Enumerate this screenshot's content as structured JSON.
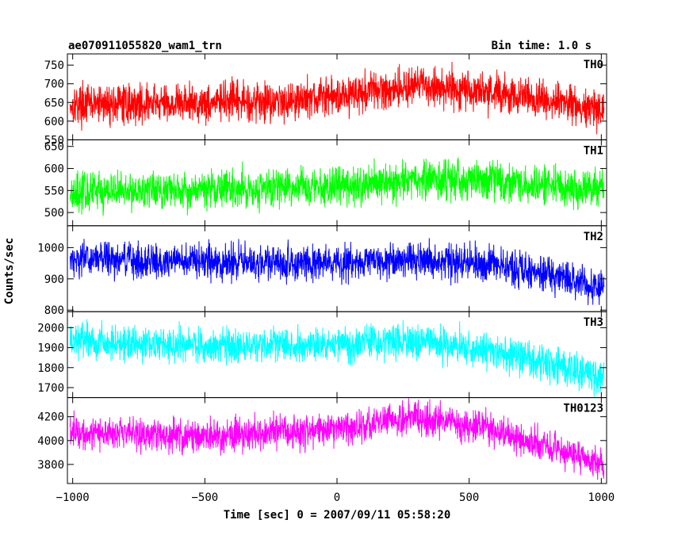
{
  "chart_data": {
    "type": "line",
    "title": "ae070911055820_wam1_trn",
    "subtitle": "Bin time: 1.0 s",
    "xlabel": "Time [sec] 0 = 2007/09/11 05:58:20",
    "ylabel": "Counts/sec",
    "xlim": [
      -1020,
      1020
    ],
    "x_ticks": [
      -1000,
      -500,
      0,
      500,
      1000
    ],
    "x_tick_labels": [
      "−1000",
      "−500",
      "0",
      "500",
      "1000"
    ],
    "grid": false,
    "legend": "none",
    "panels": [
      {
        "name": "TH0",
        "color": "#ff0000",
        "ylim": [
          550,
          780
        ],
        "y_ticks": [
          550,
          600,
          650,
          700,
          750
        ],
        "trend": [
          [
            -1000,
            645
          ],
          [
            -600,
            648
          ],
          [
            -200,
            655
          ],
          [
            0,
            668
          ],
          [
            300,
            695
          ],
          [
            500,
            685
          ],
          [
            700,
            665
          ],
          [
            1000,
            630
          ]
        ],
        "noise": 45
      },
      {
        "name": "TH1",
        "color": "#00ff00",
        "ylim": [
          470,
          665
        ],
        "y_ticks": [
          500,
          550,
          600,
          650
        ],
        "trend": [
          [
            -1000,
            548
          ],
          [
            -500,
            552
          ],
          [
            0,
            560
          ],
          [
            300,
            575
          ],
          [
            600,
            570
          ],
          [
            1000,
            548
          ]
        ],
        "noise": 38
      },
      {
        "name": "TH2",
        "color": "#0000ff",
        "ylim": [
          795,
          1070
        ],
        "y_ticks": [
          800,
          900,
          1000
        ],
        "trend": [
          [
            -1000,
            965
          ],
          [
            -500,
            955
          ],
          [
            0,
            950
          ],
          [
            300,
            965
          ],
          [
            600,
            945
          ],
          [
            1000,
            880
          ]
        ],
        "noise": 48
      },
      {
        "name": "TH3",
        "color": "#00ffff",
        "ylim": [
          1650,
          2080
        ],
        "y_ticks": [
          1700,
          1800,
          1900,
          2000
        ],
        "trend": [
          [
            -1000,
            1935
          ],
          [
            -500,
            1910
          ],
          [
            0,
            1920
          ],
          [
            300,
            1935
          ],
          [
            600,
            1880
          ],
          [
            1000,
            1760
          ]
        ],
        "noise": 75
      },
      {
        "name": "TH0123",
        "color": "#ff00ff",
        "ylim": [
          3640,
          4360
        ],
        "y_ticks": [
          3800,
          4000,
          4200
        ],
        "trend": [
          [
            -1000,
            4080
          ],
          [
            -500,
            4030
          ],
          [
            0,
            4100
          ],
          [
            300,
            4190
          ],
          [
            550,
            4120
          ],
          [
            1000,
            3800
          ]
        ],
        "noise": 120
      }
    ]
  }
}
